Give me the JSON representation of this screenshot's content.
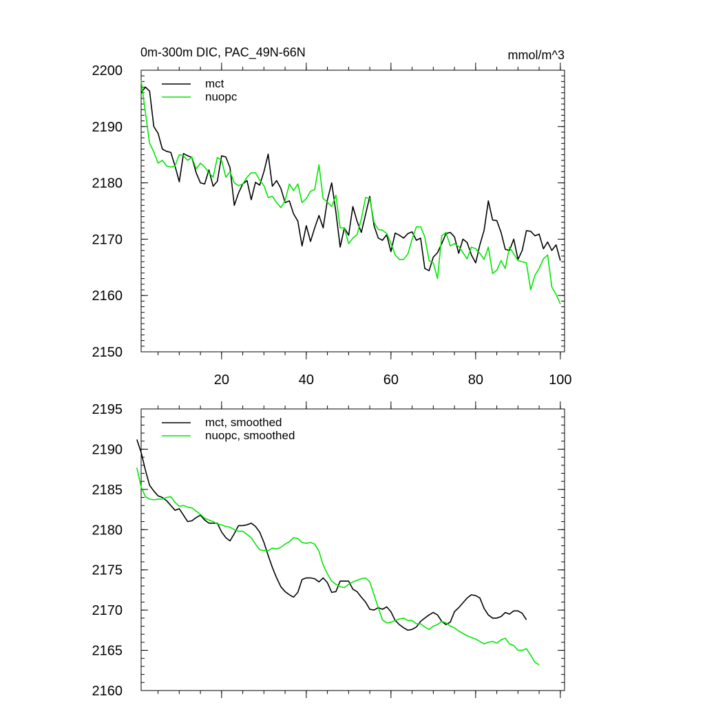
{
  "header": {
    "title": "0m-300m DIC, PAC_49N-66N",
    "units": "mmol/m^3"
  },
  "colors": {
    "mct": "#000000",
    "nuopc": "#00e600"
  },
  "chart_data": [
    {
      "type": "line",
      "xlim": [
        1,
        101
      ],
      "ylim": [
        2150,
        2200
      ],
      "yticks": [
        2150,
        2160,
        2170,
        2180,
        2190,
        2200
      ],
      "xticks": [
        20,
        40,
        60,
        80,
        100
      ],
      "legend_position": "top-left",
      "series": [
        {
          "name": "mct",
          "x_start": 1,
          "values": [
            2196,
            2197,
            2196.3,
            2190,
            2188.8,
            2186,
            2185.6,
            2185.4,
            2183,
            2180.2,
            2185.2,
            2184.8,
            2184.5,
            2181.8,
            2180,
            2179.8,
            2182.3,
            2179.4,
            2180.3,
            2184.8,
            2184.6,
            2182.7,
            2176,
            2178.2,
            2179.8,
            2180.4,
            2177,
            2180.1,
            2179.6,
            2182,
            2185.1,
            2179.4,
            2180.4,
            2179,
            2176.5,
            2176.8,
            2174.5,
            2173.2,
            2168.8,
            2172.4,
            2169.6,
            2172,
            2174.2,
            2172,
            2177,
            2180,
            2174.8,
            2168.6,
            2172,
            2170.7,
            2175.8,
            2173.2,
            2171.2,
            2174.4,
            2177.6,
            2172.4,
            2170.2,
            2169.8,
            2170.8,
            2167.8,
            2171.1,
            2170.7,
            2170.2,
            2171,
            2171.3,
            2169.8,
            2170.2,
            2164.8,
            2164.4,
            2166.8,
            2167.6,
            2169.2,
            2171,
            2171.2,
            2170.4,
            2167.5,
            2170,
            2169.4,
            2167.2,
            2165.8,
            2169,
            2171.6,
            2176.8,
            2173.4,
            2173.3,
            2171.2,
            2168.2,
            2168,
            2170,
            2166.4,
            2168,
            2171.5,
            2171.4,
            2170.6,
            2170.9,
            2168.3,
            2169.5,
            2168,
            2169,
            2166.2
          ]
        },
        {
          "name": "nuopc",
          "x_start": 1,
          "values": [
            2198.2,
            2192.5,
            2187,
            2185.5,
            2183.5,
            2184,
            2183,
            2182.8,
            2183,
            2185,
            2184.8,
            2184,
            2184.6,
            2182.5,
            2183.5,
            2182.8,
            2181.8,
            2181,
            2184.5,
            2184,
            2181,
            2182,
            2180,
            2179.5,
            2179.8,
            2181,
            2181.8,
            2181.8,
            2180.5,
            2179.5,
            2177.4,
            2177.6,
            2176.5,
            2175.6,
            2176.8,
            2179.8,
            2178.6,
            2179.8,
            2176.5,
            2177.2,
            2178.5,
            2178.8,
            2183.2,
            2177.2,
            2176.6,
            2175.8,
            2177.8,
            2172,
            2172,
            2169.2,
            2170.2,
            2170.8,
            2173.6,
            2177.4,
            2177.2,
            2173,
            2171.7,
            2171.6,
            2171,
            2169.3,
            2167.2,
            2166.4,
            2166.4,
            2167.4,
            2170,
            2172.2,
            2172.2,
            2170.4,
            2166.2,
            2165.8,
            2163,
            2170.6,
            2171.2,
            2168.8,
            2169.2,
            2168.7,
            2167.6,
            2166.5,
            2168.6,
            2168.3,
            2167.5,
            2166.4,
            2168.6,
            2163.9,
            2164.5,
            2166.2,
            2164.8,
            2168.6,
            2167.4,
            2166.2,
            2166,
            2165.8,
            2161,
            2163.6,
            2164.8,
            2166.5,
            2167.2,
            2161.5,
            2160.2,
            2158.5
          ]
        }
      ]
    },
    {
      "type": "line",
      "xlim": [
        1,
        101
      ],
      "ylim": [
        2160,
        2195
      ],
      "yticks": [
        2160,
        2165,
        2170,
        2175,
        2180,
        2185,
        2190,
        2195
      ],
      "xticks": [
        20,
        40,
        60,
        80,
        100
      ],
      "legend_position": "top-left",
      "series": [
        {
          "name": "mct, smoothed",
          "x_start": 0,
          "values": [
            2191.2,
            2189.6,
            2187.4,
            2185.5,
            2184.8,
            2184.2,
            2184,
            2183.6,
            2183,
            2182.4,
            2182.6,
            2181.8,
            2181,
            2181.1,
            2181.5,
            2181.8,
            2181.2,
            2180.8,
            2180.8,
            2180.8,
            2179.7,
            2179,
            2178.6,
            2179.5,
            2180.5,
            2180.5,
            2180.6,
            2180.8,
            2180.4,
            2179.7,
            2178.4,
            2176.8,
            2175.3,
            2174,
            2172.9,
            2172.3,
            2171.9,
            2171.6,
            2172.2,
            2173.8,
            2174,
            2174,
            2173.9,
            2173.5,
            2174,
            2173.4,
            2172.2,
            2172.3,
            2173.6,
            2173.6,
            2173.6,
            2172.6,
            2172.3,
            2171.6,
            2171,
            2170.1,
            2170,
            2170.3,
            2170.1,
            2170.4,
            2169.8,
            2168.7,
            2168.2,
            2167.8,
            2167.5,
            2167.6,
            2167.9,
            2168.6,
            2169,
            2169.4,
            2169.7,
            2169.4,
            2168.6,
            2168.2,
            2168.5,
            2169.8,
            2170.3,
            2170.9,
            2171.5,
            2171.9,
            2171.8,
            2171.5,
            2170.2,
            2169.4,
            2169,
            2169,
            2169.2,
            2169.7,
            2169.5,
            2169.9,
            2169.9,
            2169.6,
            2168.8
          ]
        },
        {
          "name": "nuopc, smoothed",
          "x_start": 0,
          "values": [
            2187.7,
            2185.3,
            2184.1,
            2183.8,
            2183.7,
            2183.8,
            2183.8,
            2184,
            2184.1,
            2183.4,
            2182.9,
            2183,
            2182.8,
            2182.7,
            2182.3,
            2181.9,
            2181.4,
            2181.2,
            2181,
            2180.7,
            2180.6,
            2180.4,
            2180.3,
            2180,
            2179.8,
            2179.8,
            2179.4,
            2179,
            2178.2,
            2177.5,
            2177.4,
            2177.4,
            2177.7,
            2177.6,
            2177.8,
            2178.2,
            2178.5,
            2179,
            2178.9,
            2178.4,
            2178.3,
            2178.4,
            2178.2,
            2177.3,
            2175.6,
            2174.5,
            2173.6,
            2173.2,
            2172.9,
            2172.8,
            2173.2,
            2173.5,
            2173.7,
            2173.9,
            2174,
            2173.5,
            2171.9,
            2170.3,
            2168.8,
            2168.4,
            2168.5,
            2168.7,
            2168.9,
            2169,
            2168.7,
            2168.7,
            2168.3,
            2168.3,
            2167.9,
            2167.6,
            2168,
            2168.2,
            2168.6,
            2168.4,
            2168,
            2167.8,
            2167.4,
            2167.1,
            2166.8,
            2166.6,
            2166.4,
            2166.1,
            2165.8,
            2166,
            2166.1,
            2165.9,
            2166.3,
            2166.5,
            2165.8,
            2165.6,
            2165,
            2165,
            2165.2,
            2164.4,
            2163.5,
            2163.2
          ]
        }
      ]
    }
  ]
}
